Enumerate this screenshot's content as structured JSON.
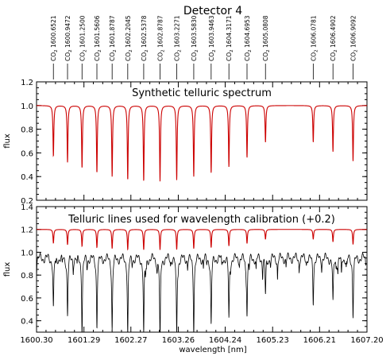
{
  "figure_title": "Detector 4",
  "chart_data": [
    {
      "type": "line",
      "title": "Synthetic telluric spectrum",
      "xlabel": "",
      "ylabel": "flux",
      "xlim": [
        1600.3,
        1607.2
      ],
      "ylim": [
        0.2,
        1.2
      ],
      "yticks": [
        0.2,
        0.4,
        0.6,
        0.8,
        1.0,
        1.2
      ],
      "grid": false,
      "series": [
        {
          "color": "#cc0000",
          "baseline": 1.0,
          "lines": [
            [
              1600.6521,
              0.57
            ],
            [
              1600.9472,
              0.52
            ],
            [
              1601.25,
              0.47
            ],
            [
              1601.5606,
              0.43
            ],
            [
              1601.8787,
              0.4
            ],
            [
              1602.2045,
              0.37
            ],
            [
              1602.5378,
              0.36
            ],
            [
              1602.8787,
              0.36
            ],
            [
              1603.2271,
              0.37
            ],
            [
              1603.583,
              0.4
            ],
            [
              1603.9463,
              0.43
            ],
            [
              1604.3171,
              0.48
            ],
            [
              1604.6953,
              0.56
            ],
            [
              1605.0808,
              0.69
            ],
            [
              1606.0781,
              0.69
            ],
            [
              1606.4902,
              0.61
            ],
            [
              1606.9092,
              0.53
            ]
          ]
        }
      ]
    },
    {
      "type": "line",
      "title": "Telluric lines used for wavelength calibration (+0.2)",
      "xlabel": "wavelength [nm]",
      "ylabel": "flux",
      "xlim": [
        1600.3,
        1607.2
      ],
      "ylim": [
        0.3,
        1.4
      ],
      "yticks": [
        0.4,
        0.6,
        0.8,
        1.0,
        1.2,
        1.4
      ],
      "xticks": [
        "1600.30",
        "1601.29",
        "1602.27",
        "1603.26",
        "1604.24",
        "1605.23",
        "1606.21",
        "1607.20"
      ],
      "grid": false,
      "series": [
        {
          "color": "#cc0000",
          "baseline": 1.2,
          "offset": 0.2
        },
        {
          "color": "#000000",
          "baseline": 0.95
        }
      ]
    }
  ],
  "line_labels": [
    "CO2 1600.6521",
    "CO2 1600.9472",
    "CO2 1601.2500",
    "CO2 1601.5606",
    "CO2 1601.8787",
    "CO2 1602.2045",
    "CO2 1602.5378",
    "CO2 1602.8787",
    "CO2 1603.2271",
    "CO2 1603.5830",
    "CO2 1603.9463",
    "CO2 1604.3171",
    "CO2 1604.6953",
    "CO2 1605.0808",
    "CO2 1606.0781",
    "CO2 1606.4902",
    "CO2 1606.9092"
  ]
}
